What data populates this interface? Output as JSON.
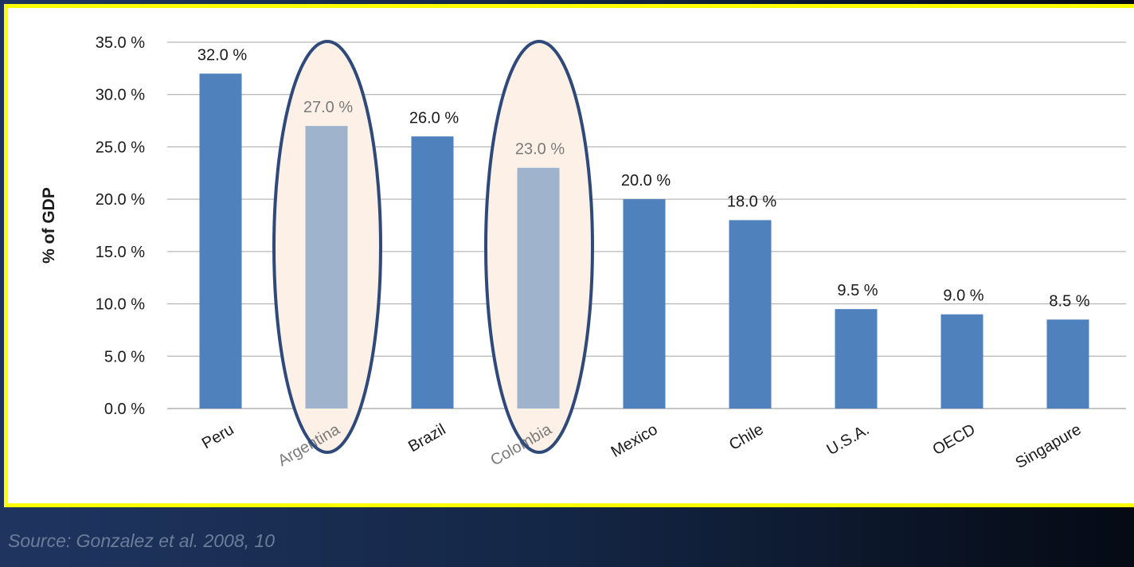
{
  "chart_data": {
    "type": "bar",
    "categories": [
      "Peru",
      "Argentina",
      "Brazil",
      "Colombia",
      "Mexico",
      "Chile",
      "U.S.A.",
      "OECD",
      "Singapure"
    ],
    "values": [
      32.0,
      27.0,
      26.0,
      23.0,
      20.0,
      18.0,
      9.5,
      9.0,
      8.5
    ],
    "value_labels": [
      "32.0 %",
      "27.0 %",
      "26.0 %",
      "23.0 %",
      "20.0 %",
      "18.0 %",
      "9.5 %",
      "9.0 %",
      "8.5 %"
    ],
    "highlighted": [
      "Argentina",
      "Colombia"
    ],
    "ylabel": "% of GDP",
    "ylim": [
      0,
      35
    ],
    "yticks": [
      0,
      5,
      10,
      15,
      20,
      25,
      30,
      35
    ],
    "ytick_labels": [
      "0.0 %",
      "5.0 %",
      "10.0 %",
      "15.0 %",
      "20.0 %",
      "25.0 %",
      "30.0 %",
      "35.0 %"
    ],
    "grid": true,
    "colors": {
      "bar": "#4f81bd",
      "bar_highlighted": "#9fb3cd",
      "highlight_fill": "#fdf1e7",
      "highlight_stroke": "#2f4a7a",
      "label": "#1a1a1a",
      "label_highlighted": "#7a7a7a"
    }
  },
  "source": "Source: Gonzalez et al. 2008, 10"
}
